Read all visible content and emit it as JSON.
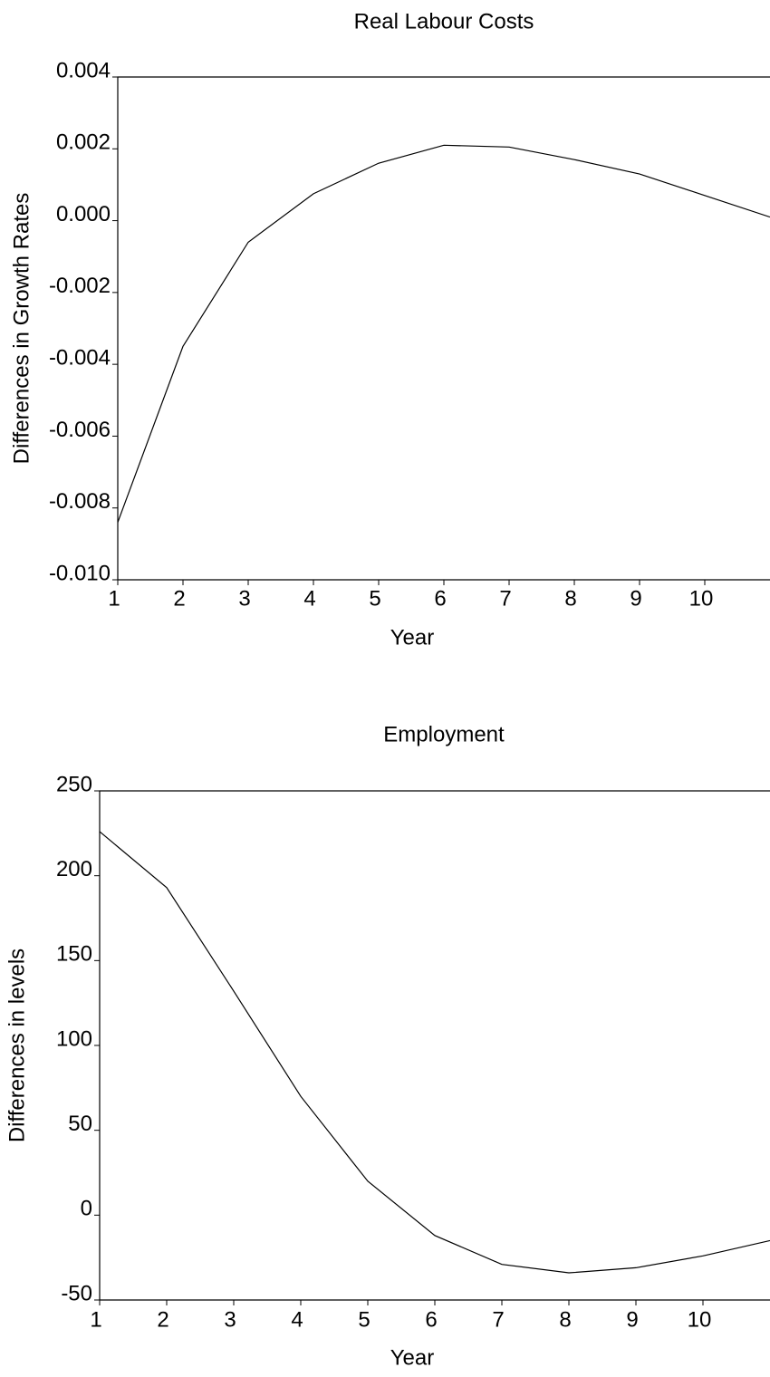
{
  "chart_data": [
    {
      "type": "line",
      "title": "Real Labour Costs",
      "x_label": "Year",
      "y_label": "Differences in Growth Rates",
      "x": [
        1,
        2,
        3,
        4,
        5,
        6,
        7,
        8,
        9,
        10,
        11
      ],
      "series": [
        {
          "color": "#000000",
          "values": [
            -0.0084,
            -0.0035,
            -0.0006,
            0.00075,
            0.0016,
            0.0021,
            0.00205,
            0.0017,
            0.0013,
            0.0007,
            0.0001
          ]
        }
      ],
      "xlim": [
        1,
        11
      ],
      "xticks": [
        1,
        2,
        3,
        4,
        5,
        6,
        7,
        8,
        9,
        10
      ],
      "ylim": [
        -0.01,
        0.004
      ],
      "yticks": [
        {
          "value": -0.01,
          "label": "-0.010"
        },
        -0.008,
        -0.006,
        -0.004,
        -0.002,
        {
          "value": 0,
          "label": "0.000"
        },
        0.002,
        0.004
      ]
    },
    {
      "type": "line",
      "title": "Employment",
      "x_label": "Year",
      "y_label": "Differences in levels",
      "x": [
        1,
        2,
        3,
        4,
        5,
        6,
        7,
        8,
        9,
        10,
        11
      ],
      "series": [
        {
          "color": "#000000",
          "values": [
            226,
            193,
            132,
            70,
            20,
            -12,
            -29,
            -34,
            -31,
            -24,
            -15
          ]
        }
      ],
      "xlim": [
        1,
        11
      ],
      "xticks": [
        1,
        2,
        3,
        4,
        5,
        6,
        7,
        8,
        9,
        10
      ],
      "ylim": [
        -50,
        250
      ],
      "yticks": [
        -50,
        0,
        50,
        100,
        150,
        200,
        250
      ]
    }
  ]
}
